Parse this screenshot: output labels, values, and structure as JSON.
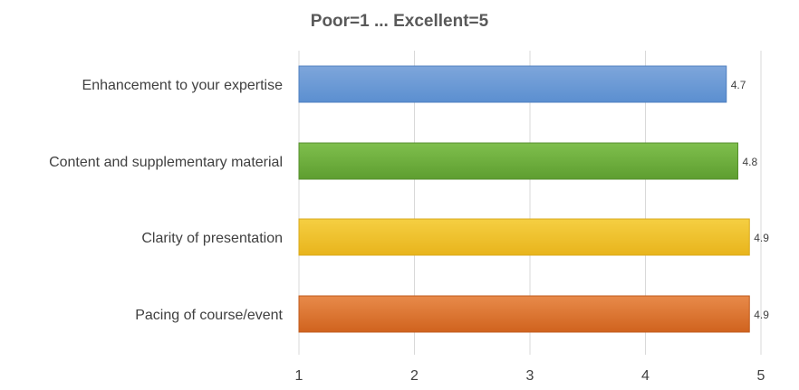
{
  "chart_data": {
    "type": "bar",
    "orientation": "horizontal",
    "title": "Poor=1 ... Excellent=5",
    "xlabel": "",
    "ylabel": "",
    "xlim": [
      1,
      5
    ],
    "x_ticks": [
      "1",
      "2",
      "3",
      "4",
      "5"
    ],
    "grid": "vertical",
    "legend": "none",
    "categories": [
      "Enhancement to your expertise",
      "Content and supplementary material",
      "Clarity of presentation",
      "Pacing of course/event"
    ],
    "values": [
      4.7,
      4.8,
      4.9,
      4.9
    ],
    "data_labels": [
      "4.7",
      "4.8",
      "4.9",
      "4.9"
    ],
    "bar_colors": [
      {
        "top": "#7ea6db",
        "bottom": "#5b8fd0",
        "stroke": "#4f7fbf"
      },
      {
        "top": "#7fbf4d",
        "bottom": "#5e9e30",
        "stroke": "#558e2c"
      },
      {
        "top": "#f5cf42",
        "bottom": "#e8b41c",
        "stroke": "#d9a81a"
      },
      {
        "top": "#e88a4a",
        "bottom": "#d0631e",
        "stroke": "#bf5a1b"
      }
    ]
  }
}
